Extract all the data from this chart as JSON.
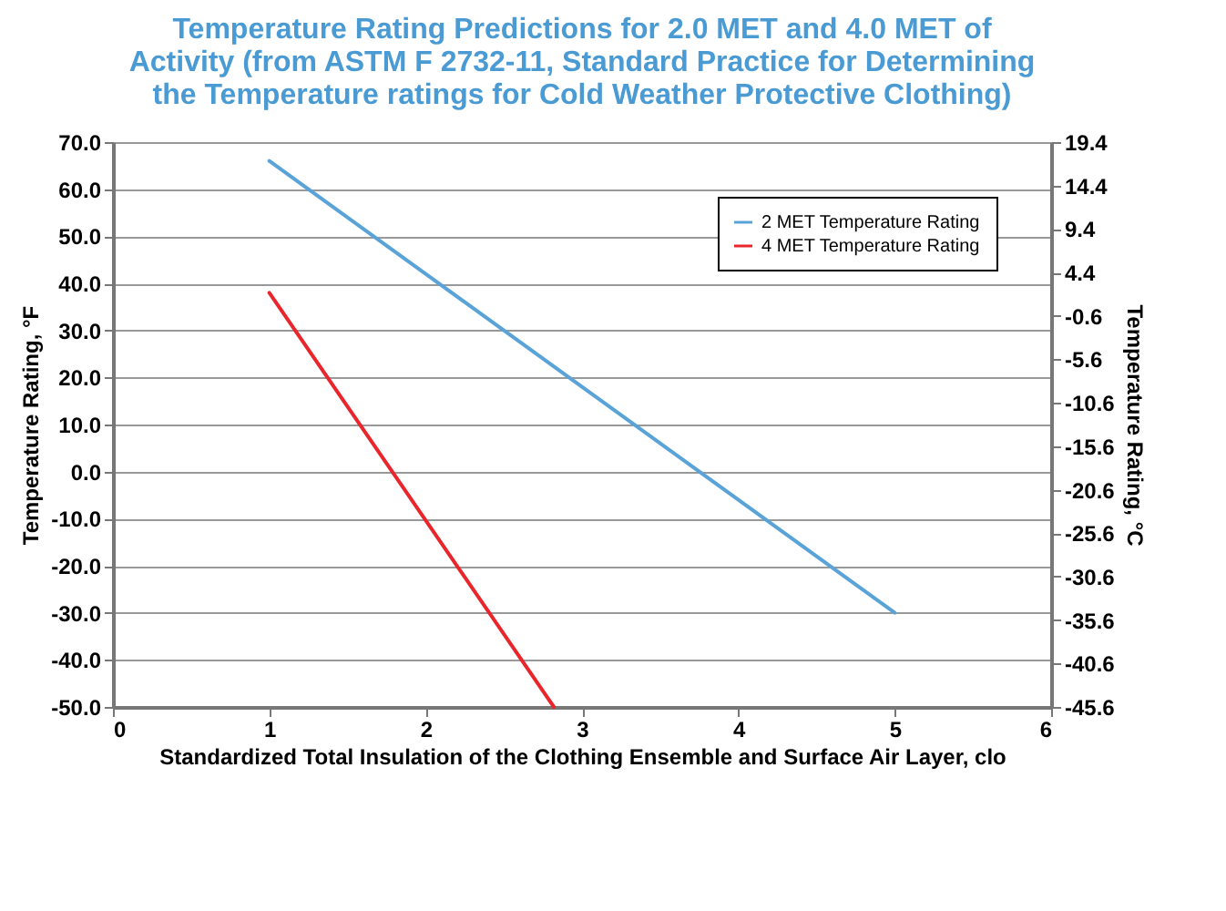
{
  "chart_data": {
    "type": "line",
    "title": "Temperature Rating Predictions for 2.0 MET and 4.0 MET of Activity (from ASTM F 2732-11, Standard Practice for Determining the Temperature ratings for Cold Weather Protective Clothing)",
    "xlabel": "Standardized Total Insulation of the Clothing Ensemble and Surface Air Layer, clo",
    "ylabel": "Temperature Rating, °F",
    "y2label": "Temperature Rating, °C",
    "series": [
      {
        "name": "2 MET Temperature Rating",
        "color": "#5aa3d8",
        "x": [
          1,
          5
        ],
        "values": [
          66,
          -30
        ]
      },
      {
        "name": "4 MET Temperature Rating",
        "color": "#e8262b",
        "x": [
          1,
          2.82
        ],
        "values": [
          38,
          -50
        ]
      }
    ],
    "xlim": [
      0,
      6
    ],
    "xticks": [
      0,
      1,
      2,
      3,
      4,
      5,
      6
    ],
    "ylim": [
      -50,
      70
    ],
    "yticks": [
      {
        "value": 70,
        "label": "70.0"
      },
      {
        "value": 60,
        "label": "60.0"
      },
      {
        "value": 50,
        "label": "50.0"
      },
      {
        "value": 40,
        "label": "40.0"
      },
      {
        "value": 30,
        "label": "30.0"
      },
      {
        "value": 20,
        "label": "20.0"
      },
      {
        "value": 10,
        "label": "10.0"
      },
      {
        "value": 0,
        "label": "0.0"
      },
      {
        "value": -10,
        "label": "-10.0"
      },
      {
        "value": -20,
        "label": "-20.0"
      },
      {
        "value": -30,
        "label": "-30.0"
      },
      {
        "value": -40,
        "label": "-40.0"
      },
      {
        "value": -50,
        "label": "-50.0"
      }
    ],
    "y2lim": [
      -45.6,
      19.4
    ],
    "y2ticks": [
      19.4,
      14.4,
      9.4,
      4.4,
      -0.6,
      -5.6,
      -10.6,
      -15.6,
      -20.6,
      -25.6,
      -30.6,
      -35.6,
      -40.6,
      -45.6
    ],
    "grid": "y",
    "legend": "top right",
    "marker": "none",
    "line_style": "solid"
  }
}
